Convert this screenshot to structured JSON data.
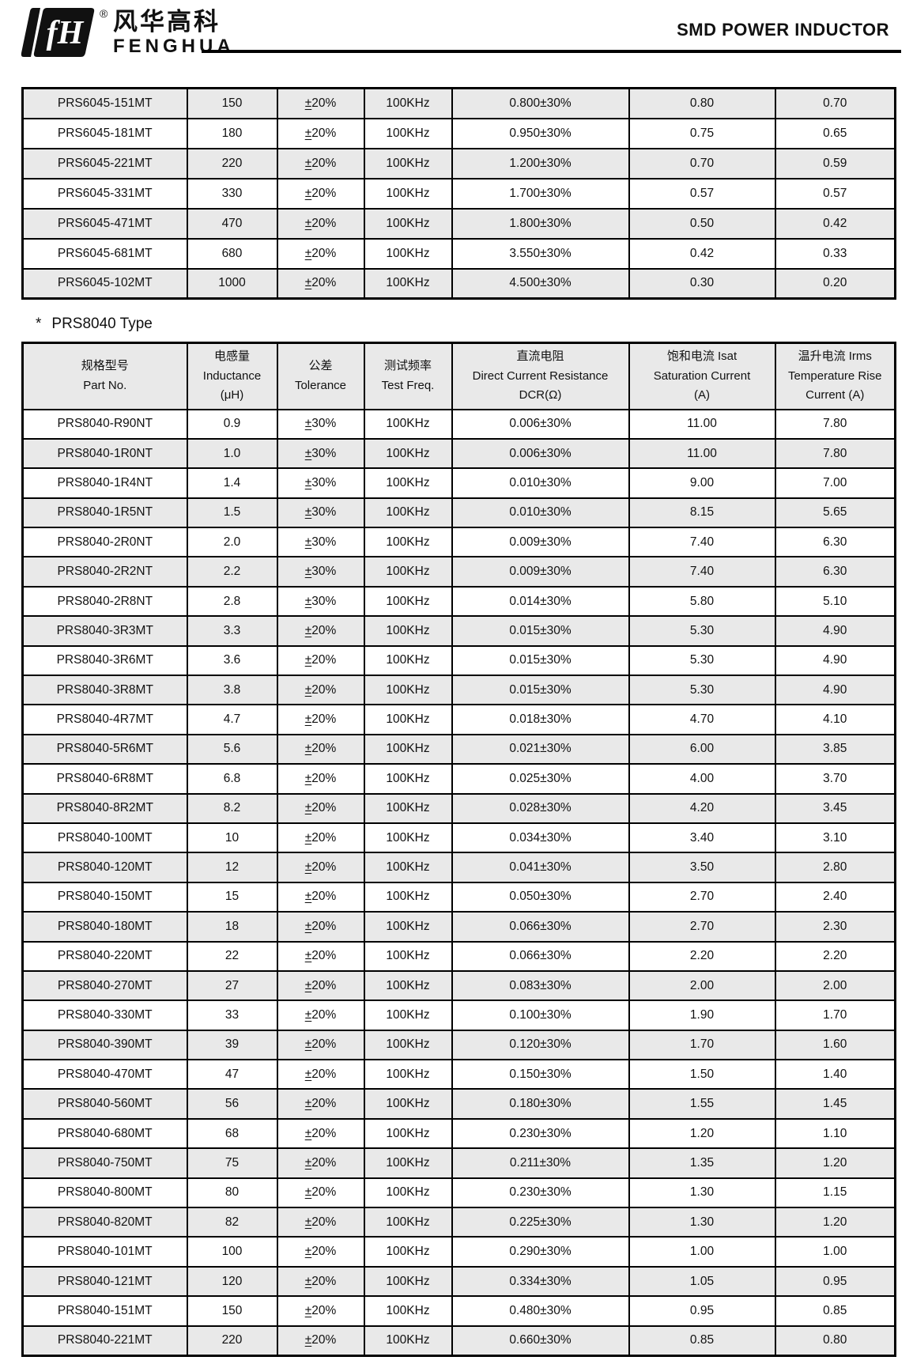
{
  "header": {
    "monogram": "fH",
    "registered": "®",
    "brand_cn": "风华高科",
    "brand_en": "FENGHUA",
    "title": "SMD POWER INDUCTOR"
  },
  "prs6045_table": {
    "rows": [
      [
        "PRS6045-151MT",
        "150",
        "±20%",
        "100KHz",
        "0.800±30%",
        "0.80",
        "0.70"
      ],
      [
        "PRS6045-181MT",
        "180",
        "±20%",
        "100KHz",
        "0.950±30%",
        "0.75",
        "0.65"
      ],
      [
        "PRS6045-221MT",
        "220",
        "±20%",
        "100KHz",
        "1.200±30%",
        "0.70",
        "0.59"
      ],
      [
        "PRS6045-331MT",
        "330",
        "±20%",
        "100KHz",
        "1.700±30%",
        "0.57",
        "0.57"
      ],
      [
        "PRS6045-471MT",
        "470",
        "±20%",
        "100KHz",
        "1.800±30%",
        "0.50",
        "0.42"
      ],
      [
        "PRS6045-681MT",
        "680",
        "±20%",
        "100KHz",
        "3.550±30%",
        "0.42",
        "0.33"
      ],
      [
        "PRS6045-102MT",
        "1000",
        "±20%",
        "100KHz",
        "4.500±30%",
        "0.30",
        "0.20"
      ]
    ]
  },
  "prs8040_section": {
    "star": "*",
    "title": "PRS8040 Type"
  },
  "prs8040_table": {
    "columns": [
      {
        "lines": [
          "规格型号",
          "Part No."
        ]
      },
      {
        "lines": [
          "电感量",
          "Inductance",
          "(μH)"
        ]
      },
      {
        "lines": [
          "公差",
          "Tolerance"
        ]
      },
      {
        "lines": [
          "测试频率",
          "Test Freq."
        ]
      },
      {
        "lines": [
          "直流电阻",
          "Direct Current Resistance",
          "DCR(Ω)"
        ]
      },
      {
        "lines": [
          "饱和电流 Isat",
          "Saturation Current",
          "(A)"
        ]
      },
      {
        "lines": [
          "温升电流 Irms",
          "Temperature Rise",
          "Current (A)"
        ]
      }
    ],
    "rows": [
      [
        "PRS8040-R90NT",
        "0.9",
        "±30%",
        "100KHz",
        "0.006±30%",
        "11.00",
        "7.80"
      ],
      [
        "PRS8040-1R0NT",
        "1.0",
        "±30%",
        "100KHz",
        "0.006±30%",
        "11.00",
        "7.80"
      ],
      [
        "PRS8040-1R4NT",
        "1.4",
        "±30%",
        "100KHz",
        "0.010±30%",
        "9.00",
        "7.00"
      ],
      [
        "PRS8040-1R5NT",
        "1.5",
        "±30%",
        "100KHz",
        "0.010±30%",
        "8.15",
        "5.65"
      ],
      [
        "PRS8040-2R0NT",
        "2.0",
        "±30%",
        "100KHz",
        "0.009±30%",
        "7.40",
        "6.30"
      ],
      [
        "PRS8040-2R2NT",
        "2.2",
        "±30%",
        "100KHz",
        "0.009±30%",
        "7.40",
        "6.30"
      ],
      [
        "PRS8040-2R8NT",
        "2.8",
        "±30%",
        "100KHz",
        "0.014±30%",
        "5.80",
        "5.10"
      ],
      [
        "PRS8040-3R3MT",
        "3.3",
        "±20%",
        "100KHz",
        "0.015±30%",
        "5.30",
        "4.90"
      ],
      [
        "PRS8040-3R6MT",
        "3.6",
        "±20%",
        "100KHz",
        "0.015±30%",
        "5.30",
        "4.90"
      ],
      [
        "PRS8040-3R8MT",
        "3.8",
        "±20%",
        "100KHz",
        "0.015±30%",
        "5.30",
        "4.90"
      ],
      [
        "PRS8040-4R7MT",
        "4.7",
        "±20%",
        "100KHz",
        "0.018±30%",
        "4.70",
        "4.10"
      ],
      [
        "PRS8040-5R6MT",
        "5.6",
        "±20%",
        "100KHz",
        "0.021±30%",
        "6.00",
        "3.85"
      ],
      [
        "PRS8040-6R8MT",
        "6.8",
        "±20%",
        "100KHz",
        "0.025±30%",
        "4.00",
        "3.70"
      ],
      [
        "PRS8040-8R2MT",
        "8.2",
        "±20%",
        "100KHz",
        "0.028±30%",
        "4.20",
        "3.45"
      ],
      [
        "PRS8040-100MT",
        "10",
        "±20%",
        "100KHz",
        "0.034±30%",
        "3.40",
        "3.10"
      ],
      [
        "PRS8040-120MT",
        "12",
        "±20%",
        "100KHz",
        "0.041±30%",
        "3.50",
        "2.80"
      ],
      [
        "PRS8040-150MT",
        "15",
        "±20%",
        "100KHz",
        "0.050±30%",
        "2.70",
        "2.40"
      ],
      [
        "PRS8040-180MT",
        "18",
        "±20%",
        "100KHz",
        "0.066±30%",
        "2.70",
        "2.30"
      ],
      [
        "PRS8040-220MT",
        "22",
        "±20%",
        "100KHz",
        "0.066±30%",
        "2.20",
        "2.20"
      ],
      [
        "PRS8040-270MT",
        "27",
        "±20%",
        "100KHz",
        "0.083±30%",
        "2.00",
        "2.00"
      ],
      [
        "PRS8040-330MT",
        "33",
        "±20%",
        "100KHz",
        "0.100±30%",
        "1.90",
        "1.70"
      ],
      [
        "PRS8040-390MT",
        "39",
        "±20%",
        "100KHz",
        "0.120±30%",
        "1.70",
        "1.60"
      ],
      [
        "PRS8040-470MT",
        "47",
        "±20%",
        "100KHz",
        "0.150±30%",
        "1.50",
        "1.40"
      ],
      [
        "PRS8040-560MT",
        "56",
        "±20%",
        "100KHz",
        "0.180±30%",
        "1.55",
        "1.45"
      ],
      [
        "PRS8040-680MT",
        "68",
        "±20%",
        "100KHz",
        "0.230±30%",
        "1.20",
        "1.10"
      ],
      [
        "PRS8040-750MT",
        "75",
        "±20%",
        "100KHz",
        "0.211±30%",
        "1.35",
        "1.20"
      ],
      [
        "PRS8040-800MT",
        "80",
        "±20%",
        "100KHz",
        "0.230±30%",
        "1.30",
        "1.15"
      ],
      [
        "PRS8040-820MT",
        "82",
        "±20%",
        "100KHz",
        "0.225±30%",
        "1.30",
        "1.20"
      ],
      [
        "PRS8040-101MT",
        "100",
        "±20%",
        "100KHz",
        "0.290±30%",
        "1.00",
        "1.00"
      ],
      [
        "PRS8040-121MT",
        "120",
        "±20%",
        "100KHz",
        "0.334±30%",
        "1.05",
        "0.95"
      ],
      [
        "PRS8040-151MT",
        "150",
        "±20%",
        "100KHz",
        "0.480±30%",
        "0.95",
        "0.85"
      ],
      [
        "PRS8040-221MT",
        "220",
        "±20%",
        "100KHz",
        "0.660±30%",
        "0.85",
        "0.80"
      ]
    ]
  },
  "colors": {
    "row_shade": "#e9e9e9",
    "border": "#000000",
    "text": "#111111"
  }
}
